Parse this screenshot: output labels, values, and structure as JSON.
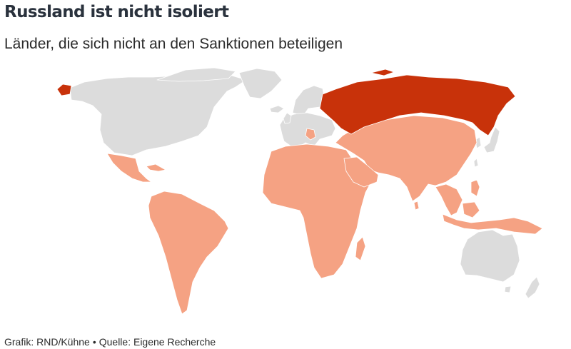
{
  "title": "Russland ist nicht isoliert",
  "subtitle": "Länder, die sich nicht an den Sanktionen beteiligen",
  "footer": {
    "credit": "Grafik: RND/Kühne",
    "separator": "•",
    "source": "Quelle: Eigene Recherche"
  },
  "colors": {
    "russia": "#c8320a",
    "not_sanctioning": "#f5a283",
    "sanctioning": "#dcdcdc",
    "border": "#ffffff"
  }
}
